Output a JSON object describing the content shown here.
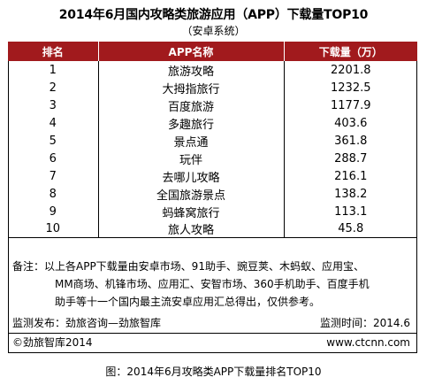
{
  "title": "2014年6月国内攻略类旅游应用（APP）下载量TOP10",
  "subtitle": "（安卓系统）",
  "chart_data": {
    "type": "table",
    "columns": [
      "排名",
      "APP名称",
      "下载量（万）"
    ],
    "rows": [
      [
        "1",
        "旅游攻略",
        "2201.8"
      ],
      [
        "2",
        "大拇指旅行",
        "1232.5"
      ],
      [
        "3",
        "百度旅游",
        "1177.9"
      ],
      [
        "4",
        "多趣旅行",
        "403.6"
      ],
      [
        "5",
        "景点通",
        "361.8"
      ],
      [
        "6",
        "玩伴",
        "288.7"
      ],
      [
        "7",
        "去哪儿攻略",
        "216.1"
      ],
      [
        "8",
        "全国旅游景点",
        "138.2"
      ],
      [
        "9",
        "蚂蜂窝旅行",
        "113.1"
      ],
      [
        "10",
        "旅人攻略",
        "45.8"
      ]
    ]
  },
  "note": {
    "line1": "备注：以上各APP下载量由安卓市场、91助手、豌豆荚、木蚂蚁、应用宝、",
    "line2": "MM商场、机锋市场、应用汇、安智市场、360手机助手、百度手机",
    "line3": "助手等十一个国内最主流安卓应用汇总得出，仅供参考。"
  },
  "monitor": {
    "publisher": "监测发布：劲旅咨询—劲旅智库",
    "time": "监测时间：2014.6"
  },
  "footer": {
    "copyright": "©劲旅智库2014",
    "website": "www.ctcnn.com"
  },
  "caption": "图：2014年6月攻略类APP下载量排名TOP10",
  "colors": {
    "header_bg": "#a11a1d",
    "header_text": "#ffffff",
    "border": "#000000"
  }
}
